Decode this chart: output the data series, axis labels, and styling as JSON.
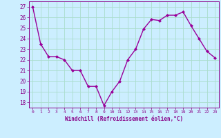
{
  "x": [
    0,
    1,
    2,
    3,
    4,
    5,
    6,
    7,
    8,
    9,
    10,
    11,
    12,
    13,
    14,
    15,
    16,
    17,
    18,
    19,
    20,
    21,
    22,
    23
  ],
  "y": [
    27.0,
    23.5,
    22.3,
    22.3,
    22.0,
    21.0,
    21.0,
    19.5,
    19.5,
    17.7,
    19.0,
    20.0,
    22.0,
    23.0,
    24.9,
    25.8,
    25.7,
    26.2,
    26.2,
    26.5,
    25.2,
    24.0,
    22.8,
    22.2
  ],
  "line_color": "#990099",
  "marker": "D",
  "marker_size": 2.0,
  "linewidth": 1.0,
  "xlabel": "Windchill (Refroidissement éolien,°C)",
  "ylim": [
    17.5,
    27.5
  ],
  "xlim": [
    -0.5,
    23.5
  ],
  "yticks": [
    18,
    19,
    20,
    21,
    22,
    23,
    24,
    25,
    26,
    27
  ],
  "xticks": [
    0,
    1,
    2,
    3,
    4,
    5,
    6,
    7,
    8,
    9,
    10,
    11,
    12,
    13,
    14,
    15,
    16,
    17,
    18,
    19,
    20,
    21,
    22,
    23
  ],
  "bg_color": "#cceeff",
  "grid_color": "#aaddcc",
  "tick_color": "#880088",
  "label_color": "#880088",
  "spine_color": "#880088"
}
